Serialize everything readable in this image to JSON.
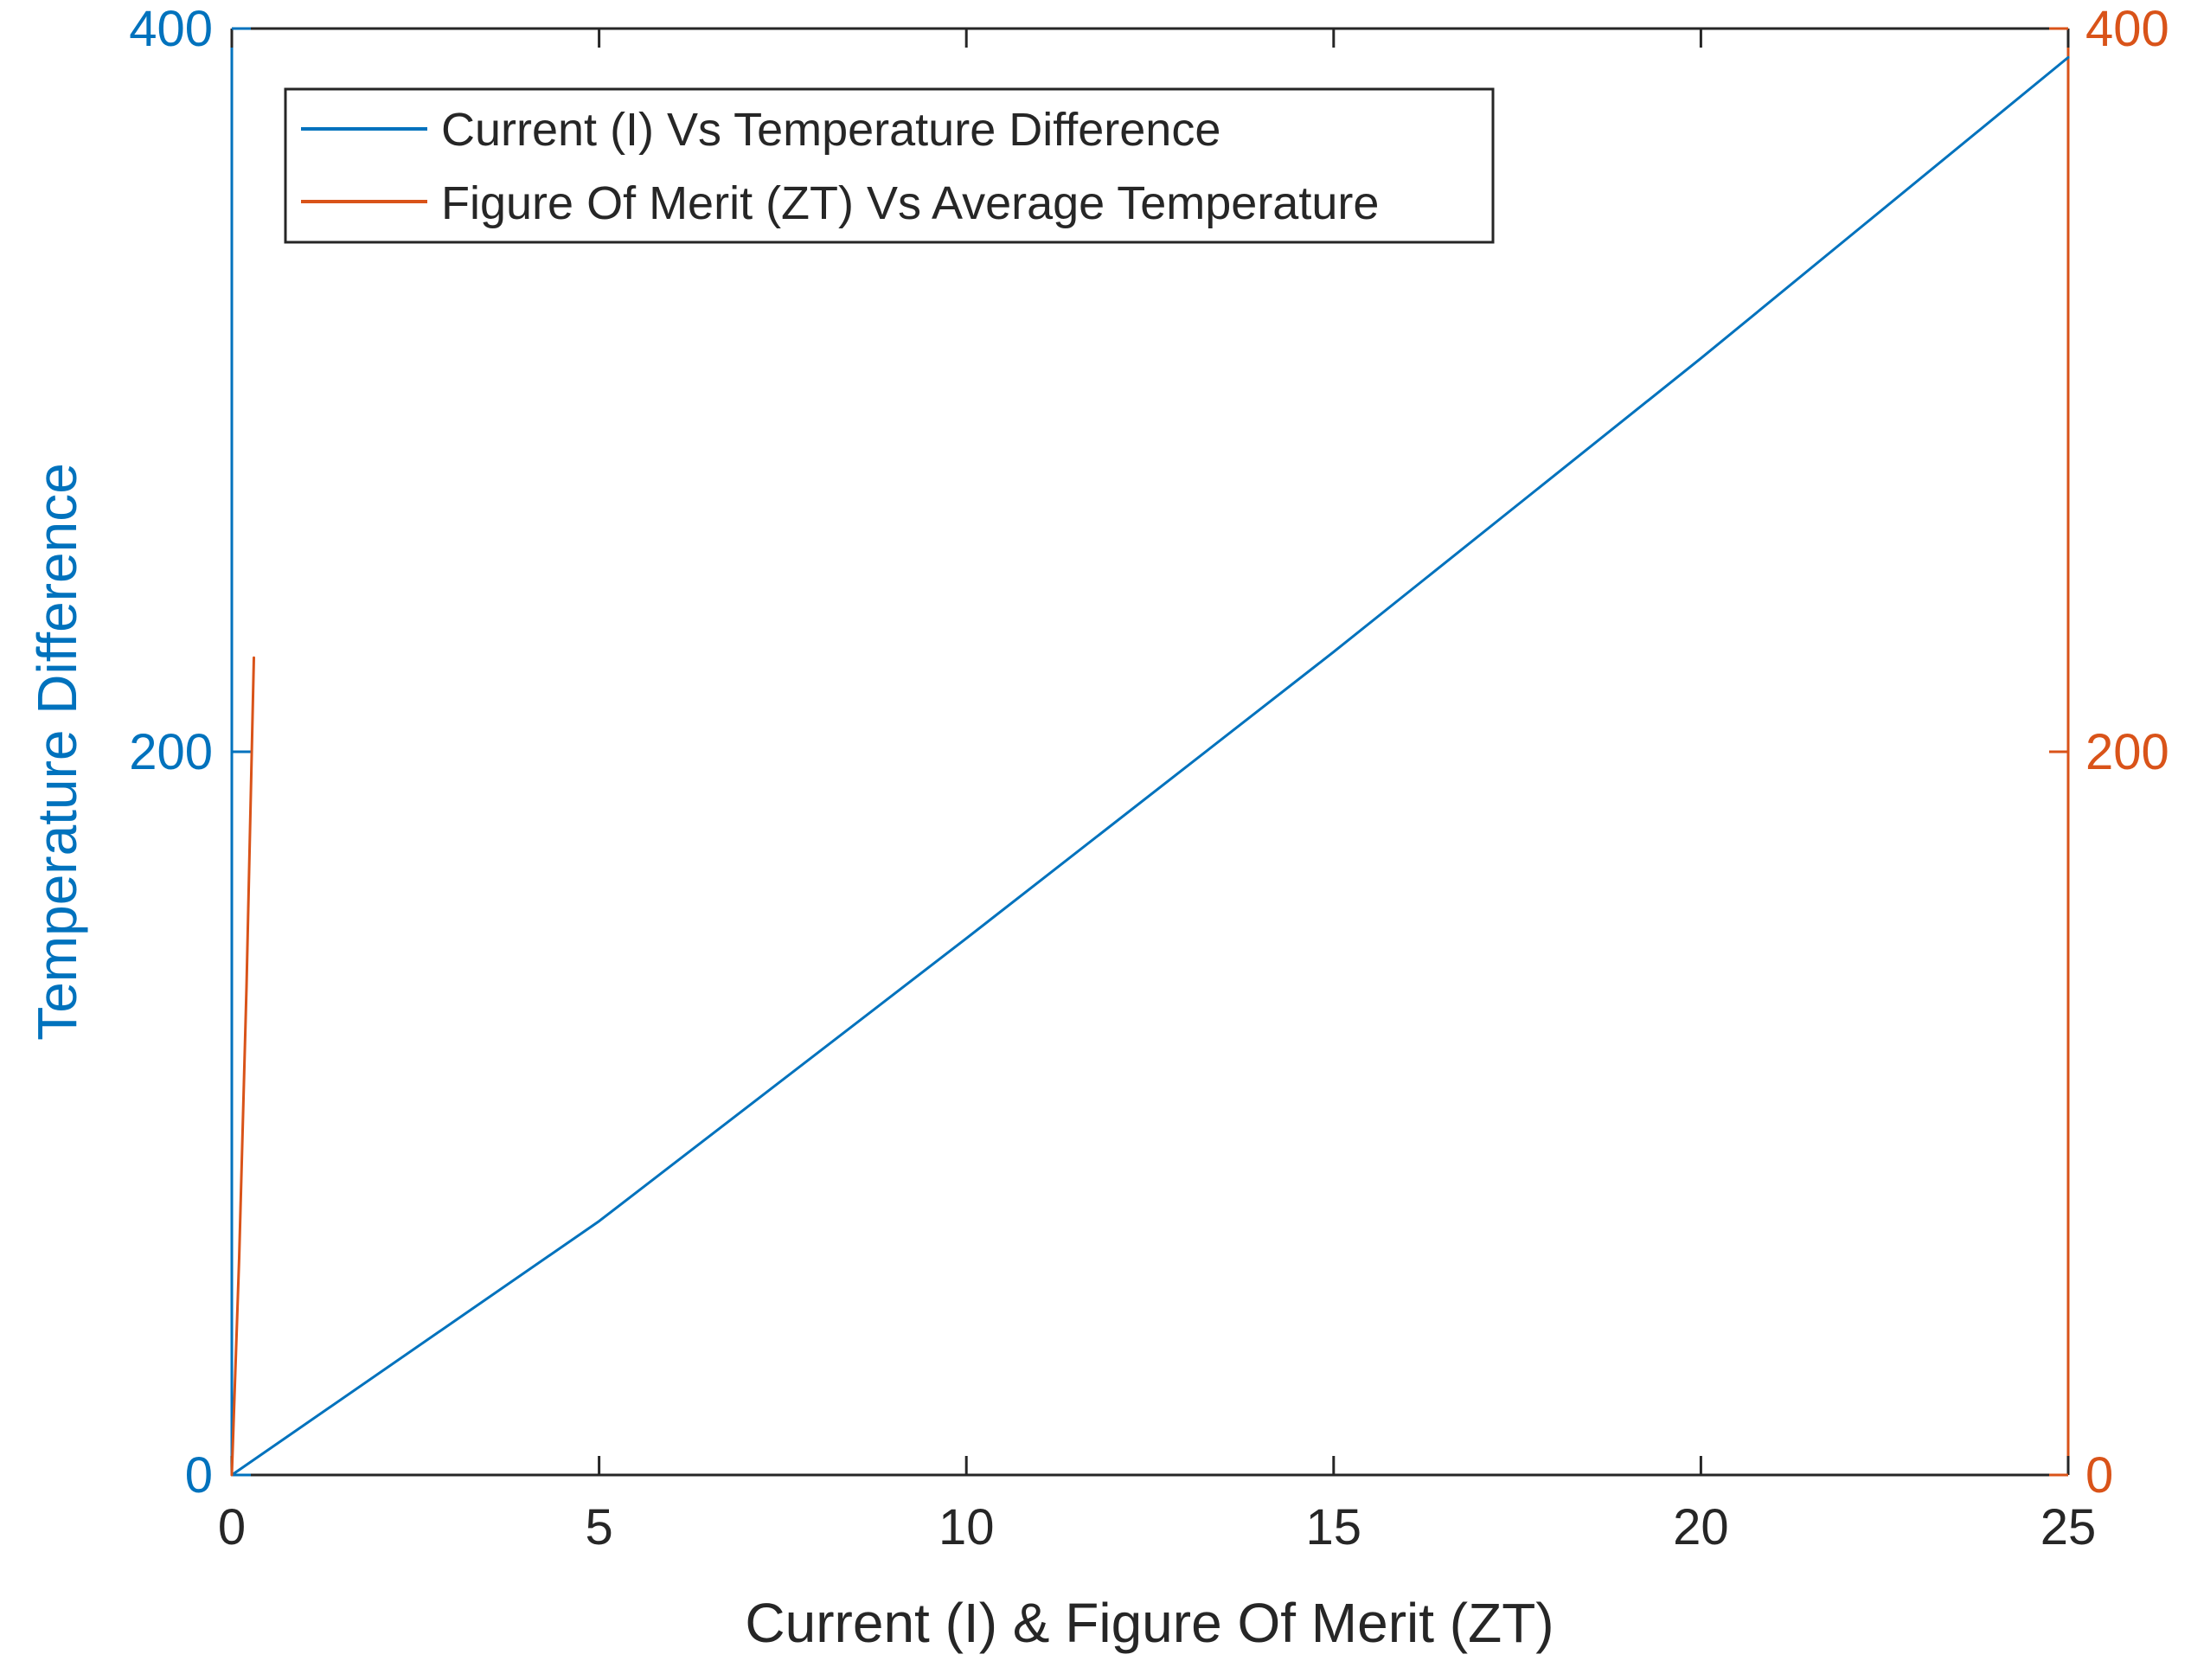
{
  "chart_data": {
    "type": "line",
    "title": "",
    "xlabel": "Current (I) & Figure Of Merit (ZT)",
    "ylabel_left": "Temperature Difference",
    "ylabel_right": "",
    "xlim": [
      0,
      25
    ],
    "ylim_left": [
      0,
      400
    ],
    "ylim_right": [
      0,
      400
    ],
    "x_ticks": [
      "0",
      "5",
      "10",
      "15",
      "20",
      "25"
    ],
    "y_left_ticks": [
      "0",
      "200",
      "400"
    ],
    "y_right_ticks": [
      "0",
      "200",
      "400"
    ],
    "grid": false,
    "legend_position": "top-left",
    "colors": {
      "left_axis": "#0072BD",
      "right_axis": "#D95319",
      "series_1": "#0072BD",
      "series_2": "#D95319",
      "axes_frame": "#262626"
    },
    "series": [
      {
        "name": "Current (I) Vs Temperature Difference",
        "axis": "left",
        "x": [
          0,
          5,
          10,
          15,
          20,
          25
        ],
        "y": [
          0,
          70.2,
          148.4,
          227.6,
          308.8,
          392
        ]
      },
      {
        "name": "Figure Of Merit (ZT) Vs Average Temperature",
        "axis": "right",
        "x": [
          0,
          0.1,
          0.2,
          0.3
        ],
        "y": [
          0,
          60,
          135,
          226
        ]
      }
    ]
  }
}
